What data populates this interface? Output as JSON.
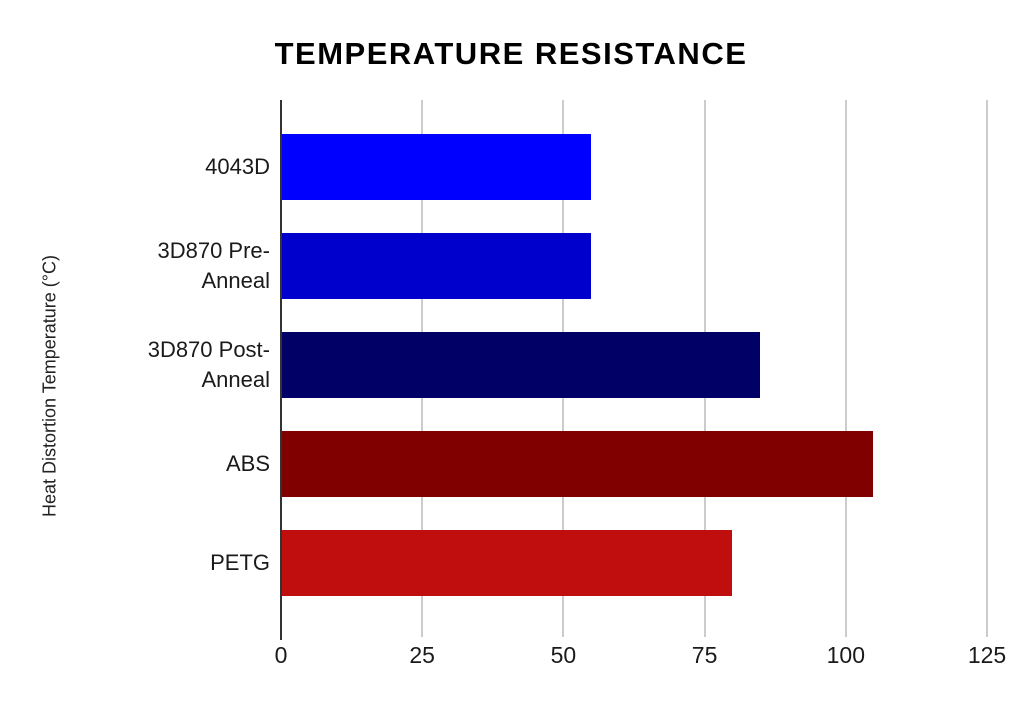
{
  "chart_data": {
    "type": "bar",
    "orientation": "horizontal",
    "title": "TEMPERATURE RESISTANCE",
    "xlabel": "",
    "ylabel": "Heat Distortion Temperature (°C)",
    "categories": [
      "4043D",
      "3D870 Pre-Anneal",
      "3D870 Post-Anneal",
      "ABS",
      "PETG"
    ],
    "category_label_lines": [
      [
        "4043D"
      ],
      [
        "3D870 Pre-",
        "Anneal"
      ],
      [
        "3D870 Post-",
        "Anneal"
      ],
      [
        "ABS"
      ],
      [
        "PETG"
      ]
    ],
    "values": [
      55,
      55,
      85,
      105,
      80
    ],
    "value_unit": "°C",
    "bar_colors": [
      "#0000ff",
      "#0000cc",
      "#000066",
      "#800000",
      "#c00d0d"
    ],
    "xlim": [
      0,
      125
    ],
    "xticks": [
      0,
      25,
      50,
      75,
      100,
      125
    ],
    "grid": "vertical-gridlines-on",
    "legend": "none",
    "style_colors": {
      "background": "#ffffff",
      "gridline": "#cccccc",
      "axis_line": "#333333",
      "title_text": "#000000",
      "label_text": "#1a1a1a"
    }
  }
}
